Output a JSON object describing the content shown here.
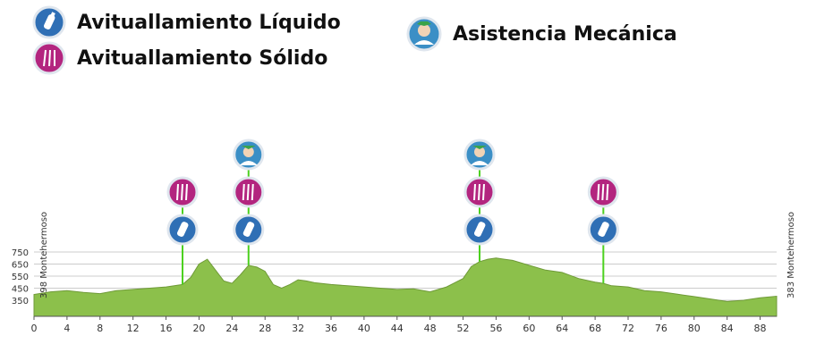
{
  "legend": {
    "liquid": {
      "label": "Avituallamiento Líquido",
      "icon": "water-bottle-icon",
      "color": "#2f6fb5"
    },
    "solid": {
      "label": "Avituallamiento Sólido",
      "icon": "cutlery-icon",
      "color": "#b3257f"
    },
    "mechanical": {
      "label": "Asistencia Mecánica",
      "icon": "mechanic-icon",
      "color": "#3b8fc6"
    }
  },
  "chart_data": {
    "type": "area",
    "xlabel": "",
    "ylabel": "",
    "xlim": [
      0,
      90
    ],
    "ylim": [
      350,
      750
    ],
    "x_ticks": [
      0,
      4,
      8,
      12,
      16,
      20,
      24,
      28,
      32,
      36,
      40,
      44,
      48,
      52,
      56,
      60,
      64,
      68,
      72,
      76,
      80,
      84,
      88
    ],
    "y_ticks": [
      350,
      450,
      550,
      650,
      750
    ],
    "fill_color": "#8cc04b",
    "grid": true,
    "start_label": "398 Montehermoso",
    "end_label": "383 Montehermoso",
    "series": [
      {
        "x": [
          0,
          2,
          4,
          6,
          8,
          10,
          12,
          14,
          16,
          18,
          19,
          20,
          21,
          22,
          23,
          24,
          25,
          26,
          27,
          28,
          29,
          30,
          31,
          32,
          33,
          34,
          36,
          38,
          40,
          42,
          44,
          46,
          48,
          50,
          52,
          53,
          54,
          55,
          56,
          57,
          58,
          60,
          62,
          64,
          66,
          68,
          69,
          70,
          72,
          74,
          76,
          78,
          80,
          82,
          84,
          86,
          88,
          90
        ],
        "y": [
          398,
          420,
          430,
          415,
          405,
          430,
          440,
          450,
          460,
          480,
          540,
          650,
          690,
          600,
          510,
          490,
          560,
          640,
          625,
          590,
          480,
          450,
          480,
          520,
          510,
          495,
          480,
          470,
          460,
          450,
          440,
          445,
          420,
          460,
          530,
          630,
          670,
          690,
          700,
          690,
          680,
          640,
          600,
          580,
          530,
          500,
          490,
          470,
          460,
          430,
          420,
          400,
          380,
          360,
          340,
          350,
          370,
          383
        ]
      }
    ],
    "markers": [
      {
        "km": 18,
        "services": [
          "liquid",
          "solid"
        ]
      },
      {
        "km": 26,
        "services": [
          "liquid",
          "solid",
          "mechanical"
        ]
      },
      {
        "km": 54,
        "services": [
          "liquid",
          "solid",
          "mechanical"
        ]
      },
      {
        "km": 69,
        "services": [
          "liquid",
          "solid"
        ]
      }
    ]
  }
}
